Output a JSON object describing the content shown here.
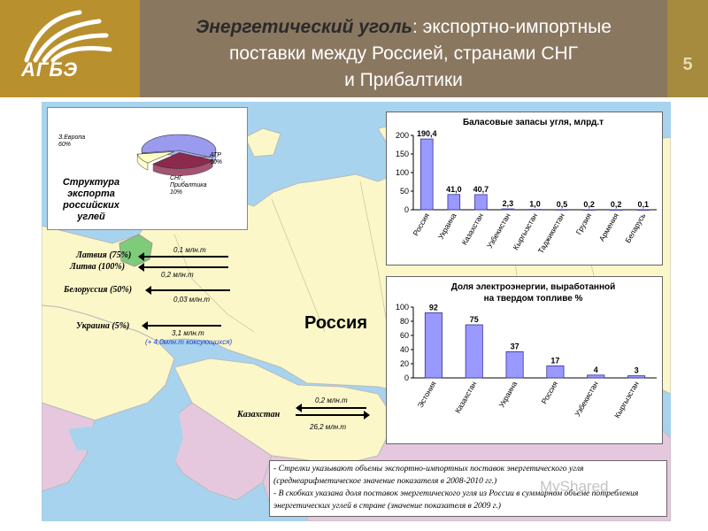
{
  "header": {
    "logo_text": "АГБЭ",
    "title_em": "Энергетический уголь",
    "title_line1_rest": ": экспортно-импортные",
    "title_line2": "поставки между Россией, странами СНГ",
    "title_line3": "и Прибалтики",
    "page_number": "5"
  },
  "colors": {
    "bar_fill": "#9999ff",
    "bar_stroke": "#333399",
    "sea": "#a7d3ee",
    "land_russia": "#fbf7c9",
    "land_other": "#e6c8de",
    "land_green": "#7ecb7a"
  },
  "map": {
    "russia_label": "Россия"
  },
  "pie": {
    "caption": "Структура экспорта российских углей",
    "labels": {
      "europe": "З.Европа",
      "europe_val": "60%",
      "atr": "АТР",
      "atr_val": "30%",
      "cis": "СНГ, Прибалтика",
      "cis_val": "10%"
    }
  },
  "flows": [
    {
      "country": "Латвия (75%)",
      "amount": "0,1 млн.т"
    },
    {
      "country": "Литва (100%)",
      "amount": "0,2 млн.т"
    },
    {
      "country": "Белоруссия (50%)",
      "amount": "0,03 млн.т"
    },
    {
      "country": "Украина (5%)",
      "amount": "3,1 млн.т",
      "extra": "(+ 4,0млн.т коксующихся)"
    },
    {
      "country": "Казахстан",
      "amount": "0,2 млн.т",
      "amount2": "26,2 млн.т"
    }
  ],
  "notes": [
    "- Стрелки указывают объемы экспортно-импортных поставок энергетического угля (среднеарифметическое значение показателя в 2008-2010 гг.)",
    "- В скобках указана доля поставок энергетического угля из России в суммарном объеме потребления энергетических углей в стране (значение показателя в 2009 г.)"
  ],
  "watermark": "MyShared",
  "chart_data": [
    {
      "type": "pie",
      "title": "Структура экспорта российских углей",
      "slices": [
        {
          "label": "З.Европа",
          "value": 60,
          "color": "#9a9aee"
        },
        {
          "label": "АТР",
          "value": 30,
          "color": "#8c2a4e"
        },
        {
          "label": "СНГ, Прибалтика",
          "value": 10,
          "color": "#ffffc4"
        }
      ]
    },
    {
      "type": "bar",
      "title": "Баласовые запасы угля, млрд.т",
      "categories": [
        "Россия",
        "Украина",
        "Казахстан",
        "Узбекистан",
        "Кыргызстан",
        "Таджикистан",
        "Грузия",
        "Армения",
        "Беларусь"
      ],
      "values": [
        190.4,
        41.0,
        40.7,
        2.3,
        1.0,
        0.5,
        0.2,
        0.2,
        0.1
      ],
      "value_labels": [
        "190,4",
        "41,0",
        "40,7",
        "2,3",
        "1,0",
        "0,5",
        "0,2",
        "0,2",
        "0,1"
      ],
      "ylim": [
        0,
        200
      ],
      "yticks": [
        0,
        50,
        100,
        150,
        200
      ],
      "grid": false
    },
    {
      "type": "bar",
      "title": "Доля электроэнергии, выработанной на твердом топливе %",
      "title_lines": [
        "Доля электроэнергии, выработанной",
        "на твердом топливе %"
      ],
      "categories": [
        "Эстония",
        "Казахстан",
        "Украина",
        "Россия",
        "Узбекистан",
        "Кыргызстан"
      ],
      "values": [
        92,
        75,
        37,
        17,
        4,
        3
      ],
      "value_labels": [
        "92",
        "75",
        "37",
        "17",
        "4",
        "3"
      ],
      "ylim": [
        0,
        100
      ],
      "yticks": [
        0,
        20,
        40,
        60,
        80,
        100
      ],
      "grid": false
    }
  ]
}
